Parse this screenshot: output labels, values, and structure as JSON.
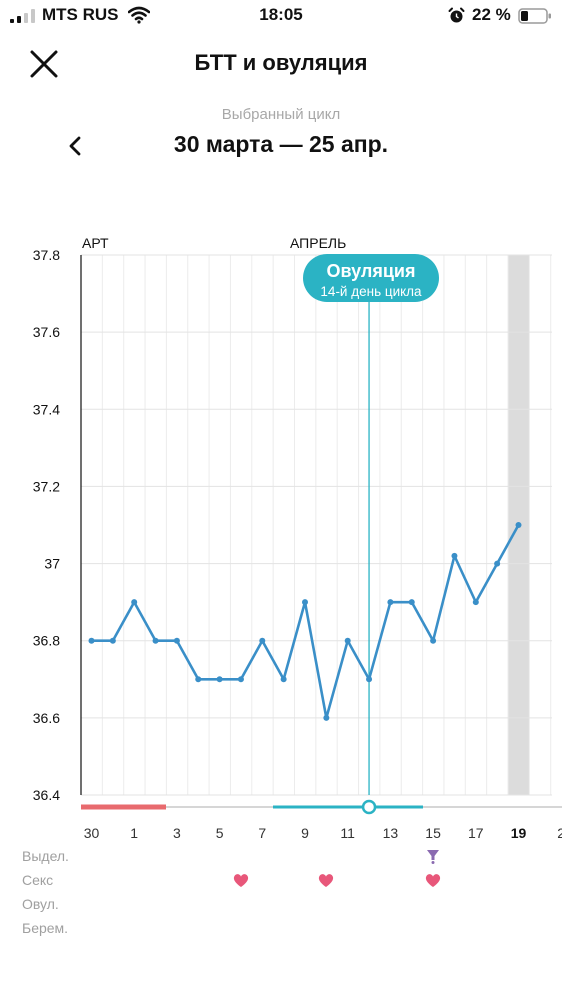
{
  "status_bar": {
    "carrier": "MTS RUS",
    "time": "18:05",
    "battery": "22 %"
  },
  "header": {
    "title": "БТТ и овуляция",
    "cycle_caption": "Выбранный цикл",
    "cycle_range": "30 марта — 25 апр."
  },
  "chart_data": {
    "type": "line",
    "month_labels": [
      "АРТ",
      "АПРЕЛЬ"
    ],
    "y_ticks": [
      "37.8",
      "37.6",
      "37.4",
      "37.2",
      "37",
      "36.8",
      "36.6",
      "36.4"
    ],
    "ylim": [
      36.4,
      37.8
    ],
    "x_days": [
      30,
      31,
      1,
      2,
      3,
      4,
      5,
      6,
      7,
      8,
      9,
      10,
      11,
      12,
      13,
      14,
      15,
      16,
      17,
      18,
      19,
      20
    ],
    "x_tick_labels": [
      "30",
      "1",
      "3",
      "5",
      "7",
      "9",
      "11",
      "13",
      "15",
      "17",
      "19",
      "2"
    ],
    "highlighted_tick": "19",
    "series": [
      {
        "values": [
          36.8,
          36.8,
          36.9,
          36.8,
          36.8,
          36.7,
          36.7,
          36.7,
          36.8,
          36.7,
          36.9,
          36.6,
          36.8,
          36.7,
          36.9,
          36.9,
          36.8,
          37.02,
          36.9,
          37.0,
          37.1
        ]
      }
    ],
    "ovulation": {
      "title": "Овуляция",
      "subtitle": "14-й день цикла"
    },
    "colors": {
      "line": "#3a8fc8",
      "ovulation": "#2bb3c4",
      "period": "#e86a6e",
      "today_band": "#dcdcdc"
    }
  },
  "rows": [
    {
      "label": "Выдел.",
      "icon": "discharge-icon",
      "marks": [
        15
      ]
    },
    {
      "label": "Секс",
      "icon": "heart-icon",
      "marks": [
        6,
        10,
        15
      ]
    },
    {
      "label": "Овул.",
      "icon": "",
      "marks": []
    },
    {
      "label": "Берем.",
      "icon": "",
      "marks": []
    }
  ]
}
